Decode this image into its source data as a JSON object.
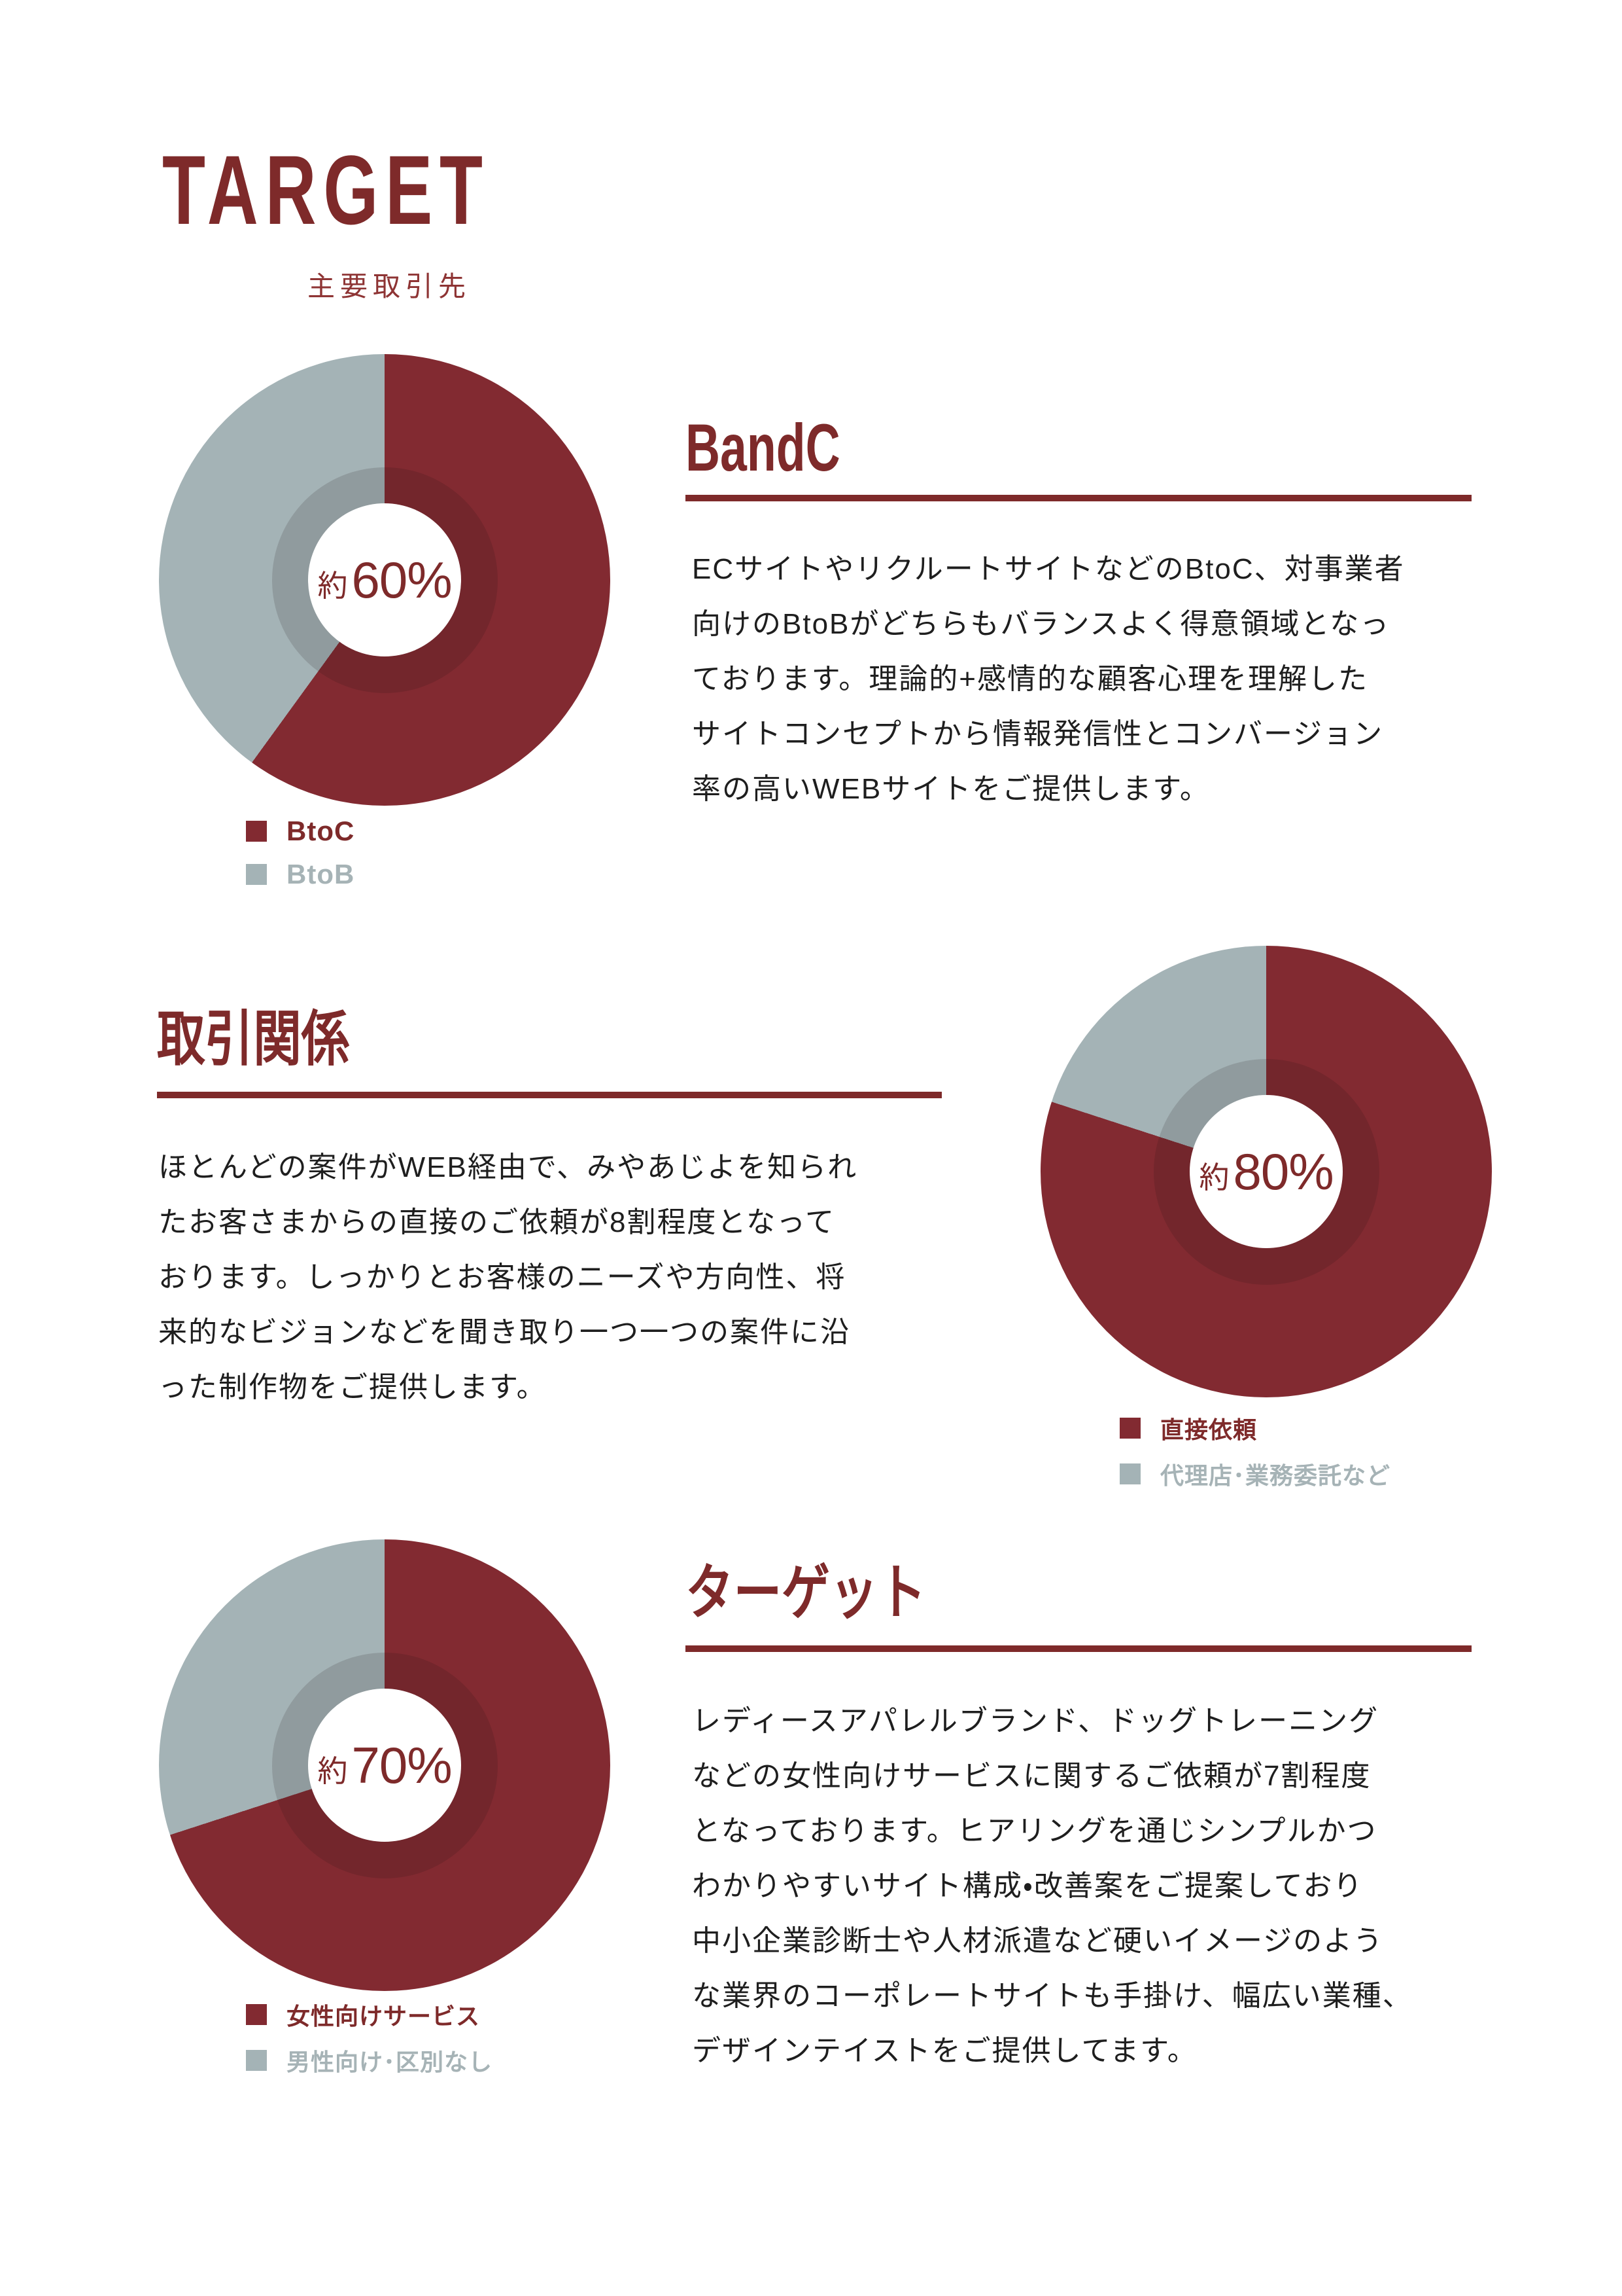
{
  "page": {
    "title": "TARGET",
    "subtitle": "主要取引先"
  },
  "colors": {
    "red": "#822A31",
    "gray": "#A4B3B6",
    "heading": "#7E2A2A",
    "subtitle": "#8E3434",
    "legend_gray": "#A6B3B6",
    "body": "#1E1E1E"
  },
  "sections": [
    {
      "heading": "BandC",
      "paragraph": "ECサイトやリクルートサイトなどのBtoC、対事業者\n向けのBtoBがどちらもバランスよく得意領域となっ\nております。理論的+感情的な顧客心理を理解した\nサイトコンセプトから情報発信性とコンバージョン\n率の高いWEBサイトをご提供します。"
    },
    {
      "heading": "取引関係",
      "paragraph": "ほとんどの案件がWEB経由で、みやあじよを知られ\nたお客さまからの直接のご依頼が8割程度となって\nおります。しっかりとお客様のニーズや方向性、将\n来的なビジョンなどを聞き取り一つ一つの案件に沿\nった制作物をご提供します。"
    },
    {
      "heading": "ターゲット",
      "paragraph": "レディースアパレルブランド、ドッグトレーニング\nなどの女性向けサービスに関するご依頼が7割程度\nとなっております。ヒアリングを通じシンプルかつ\nわかりやすいサイト構成・改善案をご提案しており\n中小企業診断士や人材派遣など硬いイメージのよう\nな業界のコーポレートサイトも手掛け、幅広い業種、\nデザインテイストをご提供してます。"
    }
  ],
  "chart_data": [
    {
      "type": "pie",
      "title": "主要取引先",
      "labels": [
        "BtoC",
        "BtoB"
      ],
      "values": [
        60,
        40
      ],
      "colors": [
        "#822A31",
        "#A4B3B6"
      ],
      "center_prefix": "約",
      "center_value": "60%",
      "legend_position": "bottom-left",
      "donut": true,
      "start_angle_deg": 0
    },
    {
      "type": "pie",
      "title": "取引関係",
      "labels": [
        "直接依頼",
        "代理店･業務委託など"
      ],
      "values": [
        80,
        20
      ],
      "colors": [
        "#822A31",
        "#A4B3B6"
      ],
      "center_prefix": "約",
      "center_value": "80%",
      "legend_position": "bottom-left",
      "donut": true,
      "start_angle_deg": 0
    },
    {
      "type": "pie",
      "title": "ターゲット",
      "labels": [
        "女性向けサービス",
        "男性向け･区別なし"
      ],
      "values": [
        70,
        30
      ],
      "colors": [
        "#822A31",
        "#A4B3B6"
      ],
      "center_prefix": "約",
      "center_value": "70%",
      "legend_position": "bottom-left",
      "donut": true,
      "start_angle_deg": 0
    }
  ]
}
